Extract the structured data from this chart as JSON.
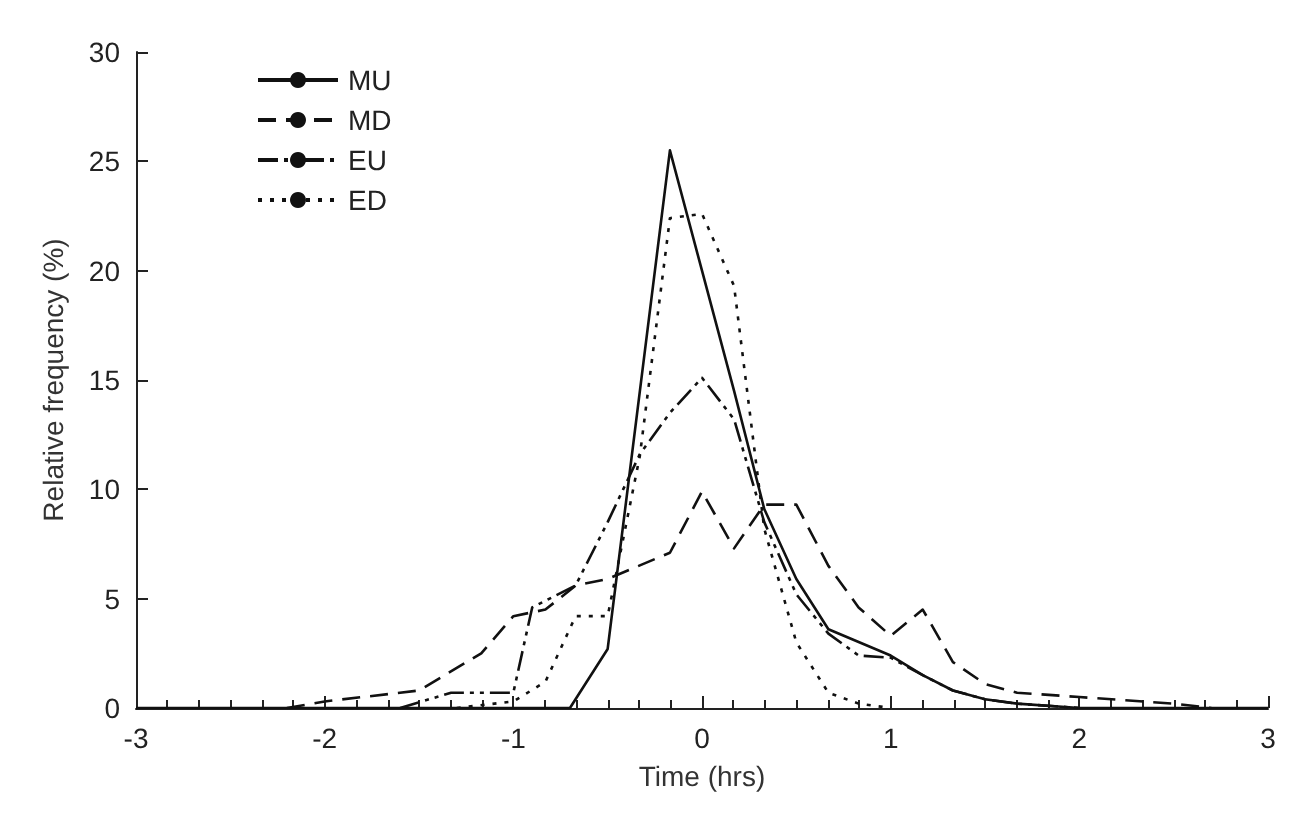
{
  "chart_data": {
    "type": "line",
    "xlabel": "Time (hrs)",
    "ylabel": "Relative frequency (%)",
    "xlim": [
      -3,
      3
    ],
    "xticks": [
      -3,
      -2,
      -1,
      0,
      1,
      2,
      3
    ],
    "ylim": [
      0,
      30
    ],
    "yticks": [
      0,
      5,
      10,
      15,
      20,
      25,
      30
    ],
    "grid": false,
    "legend": "top left",
    "marker": "none",
    "series": [
      {
        "name": "MU",
        "color": "#111111",
        "line_style": "solid",
        "x": [
          -3,
          -0.7,
          -0.5,
          -0.17,
          0,
          0.17,
          0.33,
          0.5,
          0.67,
          1.0,
          1.17,
          1.33,
          1.5,
          1.67,
          2.0,
          3
        ],
        "values": [
          0,
          0,
          2.7,
          25.5,
          20,
          14.5,
          9.1,
          5.9,
          3.6,
          2.4,
          1.5,
          0.8,
          0.4,
          0.2,
          0,
          0
        ]
      },
      {
        "name": "MD",
        "color": "#111111",
        "line_style": "dashed",
        "x": [
          -2.2,
          -2.0,
          -1.5,
          -1.17,
          -1.0,
          -0.83,
          -0.67,
          -0.5,
          -0.17,
          0,
          0.17,
          0.33,
          0.5,
          0.67,
          0.83,
          1.0,
          1.17,
          1.33,
          1.5,
          1.67,
          2.0,
          2.5,
          2.7
        ],
        "values": [
          0,
          0.3,
          0.8,
          2.5,
          4.2,
          4.5,
          5.6,
          5.9,
          7.1,
          9.9,
          7.3,
          9.3,
          9.3,
          6.5,
          4.6,
          3.3,
          4.5,
          2.1,
          1.1,
          0.7,
          0.5,
          0.2,
          0
        ]
      },
      {
        "name": "EU",
        "color": "#111111",
        "line_style": "dashdot",
        "x": [
          -1.6,
          -1.33,
          -1.0,
          -0.9,
          -0.67,
          -0.5,
          -0.33,
          -0.17,
          0,
          0.17,
          0.33,
          0.5,
          0.67,
          0.83,
          1.0,
          1.17,
          1.33,
          1.5,
          1.67,
          2.0
        ],
        "values": [
          0,
          0.7,
          0.7,
          4.6,
          5.6,
          8.5,
          11.6,
          13.5,
          15.1,
          13.2,
          8.5,
          5.2,
          3.4,
          2.4,
          2.3,
          1.5,
          0.8,
          0.4,
          0.2,
          0
        ]
      },
      {
        "name": "ED",
        "color": "#111111",
        "line_style": "dotted",
        "x": [
          -1.3,
          -1.0,
          -0.83,
          -0.67,
          -0.5,
          -0.33,
          -0.17,
          0,
          0.17,
          0.33,
          0.5,
          0.67,
          0.83,
          1.0
        ],
        "values": [
          0,
          0.3,
          1.2,
          4.2,
          4.2,
          11.5,
          22.4,
          22.6,
          19.3,
          8.2,
          3.0,
          0.7,
          0.2,
          0
        ]
      }
    ]
  }
}
